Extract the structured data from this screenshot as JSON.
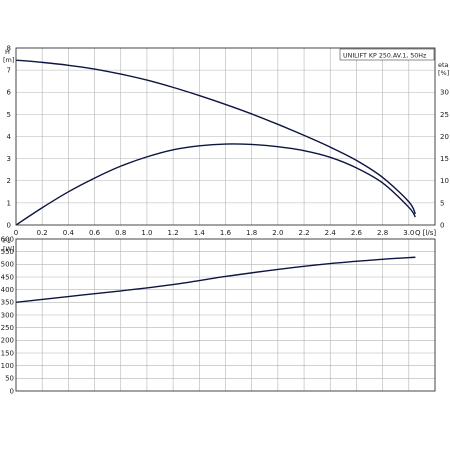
{
  "chart_data": [
    {
      "type": "line",
      "legend": "UNILIFT KP 250.AV.1, 50Hz",
      "xlabel": "Q [l/s]",
      "ylabel_left": [
        "H",
        "[m]"
      ],
      "ylabel_right": [
        "eta",
        "[%]"
      ],
      "xlim": [
        0,
        3.2
      ],
      "x_ticks": [
        0,
        0.2,
        0.4,
        0.6,
        0.8,
        1.0,
        1.2,
        1.4,
        1.6,
        1.8,
        2.0,
        2.2,
        2.4,
        2.6,
        2.8,
        3.0
      ],
      "x_tick_labels": [
        "0",
        "0.2",
        "0.4",
        "0.6",
        "0.8",
        "1.0",
        "1.2",
        "1.4",
        "1.6",
        "1.8",
        "2.0",
        "2.2",
        "2.4",
        "2.6",
        "2.8",
        "3.0"
      ],
      "ylim_left": [
        0,
        8
      ],
      "y_ticks_left": [
        0,
        1,
        2,
        3,
        4,
        5,
        6,
        7,
        8
      ],
      "ylim_right": [
        0,
        40
      ],
      "y_ticks_right": [
        0,
        5,
        10,
        15,
        20,
        25,
        30
      ],
      "grid": true,
      "series": [
        {
          "axis": "left",
          "x": [
            0,
            0.2,
            0.4,
            0.6,
            0.8,
            1.0,
            1.2,
            1.4,
            1.6,
            1.8,
            2.0,
            2.2,
            2.4,
            2.6,
            2.8,
            3.0,
            3.05
          ],
          "values": [
            7.45,
            7.35,
            7.22,
            7.05,
            6.82,
            6.55,
            6.22,
            5.85,
            5.45,
            5.02,
            4.55,
            4.05,
            3.52,
            2.92,
            2.15,
            1.05,
            0.5
          ]
        },
        {
          "axis": "right",
          "x": [
            0,
            0.2,
            0.4,
            0.6,
            0.8,
            1.0,
            1.2,
            1.4,
            1.6,
            1.8,
            2.0,
            2.2,
            2.4,
            2.6,
            2.8,
            3.0,
            3.05
          ],
          "values": [
            0,
            3.9,
            7.5,
            10.6,
            13.3,
            15.4,
            17.0,
            17.9,
            18.3,
            18.2,
            17.7,
            16.8,
            15.3,
            12.9,
            9.5,
            4.0,
            1.8
          ]
        }
      ]
    },
    {
      "type": "line",
      "ylabel": [
        "P1",
        "[W]"
      ],
      "xlim": [
        0,
        3.2
      ],
      "x_ticks": [
        0,
        0.2,
        0.4,
        0.6,
        0.8,
        1.0,
        1.2,
        1.4,
        1.6,
        1.8,
        2.0,
        2.2,
        2.4,
        2.6,
        2.8,
        3.0
      ],
      "ylim": [
        0,
        600
      ],
      "y_ticks": [
        0,
        50,
        100,
        150,
        200,
        250,
        300,
        350,
        400,
        450,
        500,
        550,
        600
      ],
      "grid": true,
      "series": [
        {
          "x": [
            0,
            0.4,
            0.8,
            1.2,
            1.6,
            2.0,
            2.4,
            2.8,
            3.05
          ],
          "values": [
            350,
            373,
            395,
            420,
            452,
            480,
            503,
            520,
            528
          ]
        }
      ]
    }
  ]
}
